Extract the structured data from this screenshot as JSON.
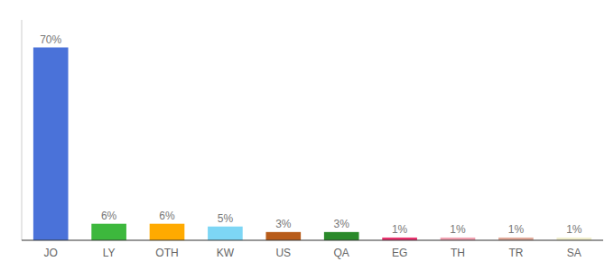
{
  "chart_data": {
    "type": "bar",
    "categories": [
      "JO",
      "LY",
      "OTH",
      "KW",
      "US",
      "QA",
      "EG",
      "TH",
      "TR",
      "SA"
    ],
    "values": [
      70,
      6,
      6,
      5,
      3,
      3,
      1,
      1,
      1,
      1
    ],
    "value_labels": [
      "70%",
      "6%",
      "6%",
      "5%",
      "3%",
      "3%",
      "1%",
      "1%",
      "1%",
      "1%"
    ],
    "colors": [
      "#4a72d9",
      "#3db83d",
      "#ffaa00",
      "#7dd6f5",
      "#b85c1a",
      "#2a8a2a",
      "#e8336e",
      "#f0a0b0",
      "#e0a898",
      "#f0eecc"
    ],
    "ylim": [
      0,
      80
    ],
    "data_labels": true,
    "tick_labels": "x",
    "grid": false
  }
}
